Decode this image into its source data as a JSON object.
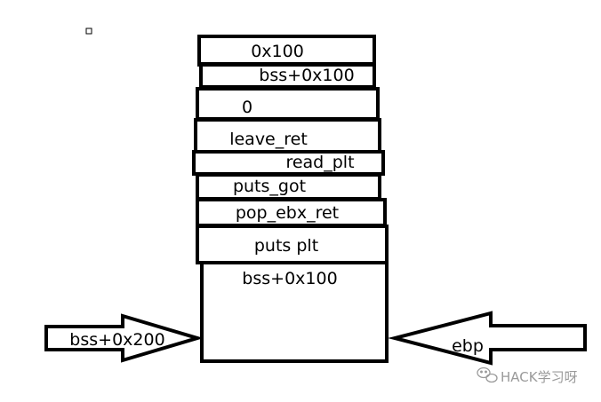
{
  "diagram": {
    "stack_cells": [
      "0x100",
      "bss+0x100",
      "0",
      "leave_ret",
      "read_plt",
      "puts_got",
      "pop_ebx_ret",
      "puts plt",
      "bss+0x100"
    ],
    "left_arrow_label": "bss+0x200",
    "right_arrow_label": "ebp",
    "stroke_color": "#000000",
    "background_color": "#ffffff"
  },
  "watermark": {
    "icon": "wechat-icon",
    "text": "HACK学习呀"
  }
}
